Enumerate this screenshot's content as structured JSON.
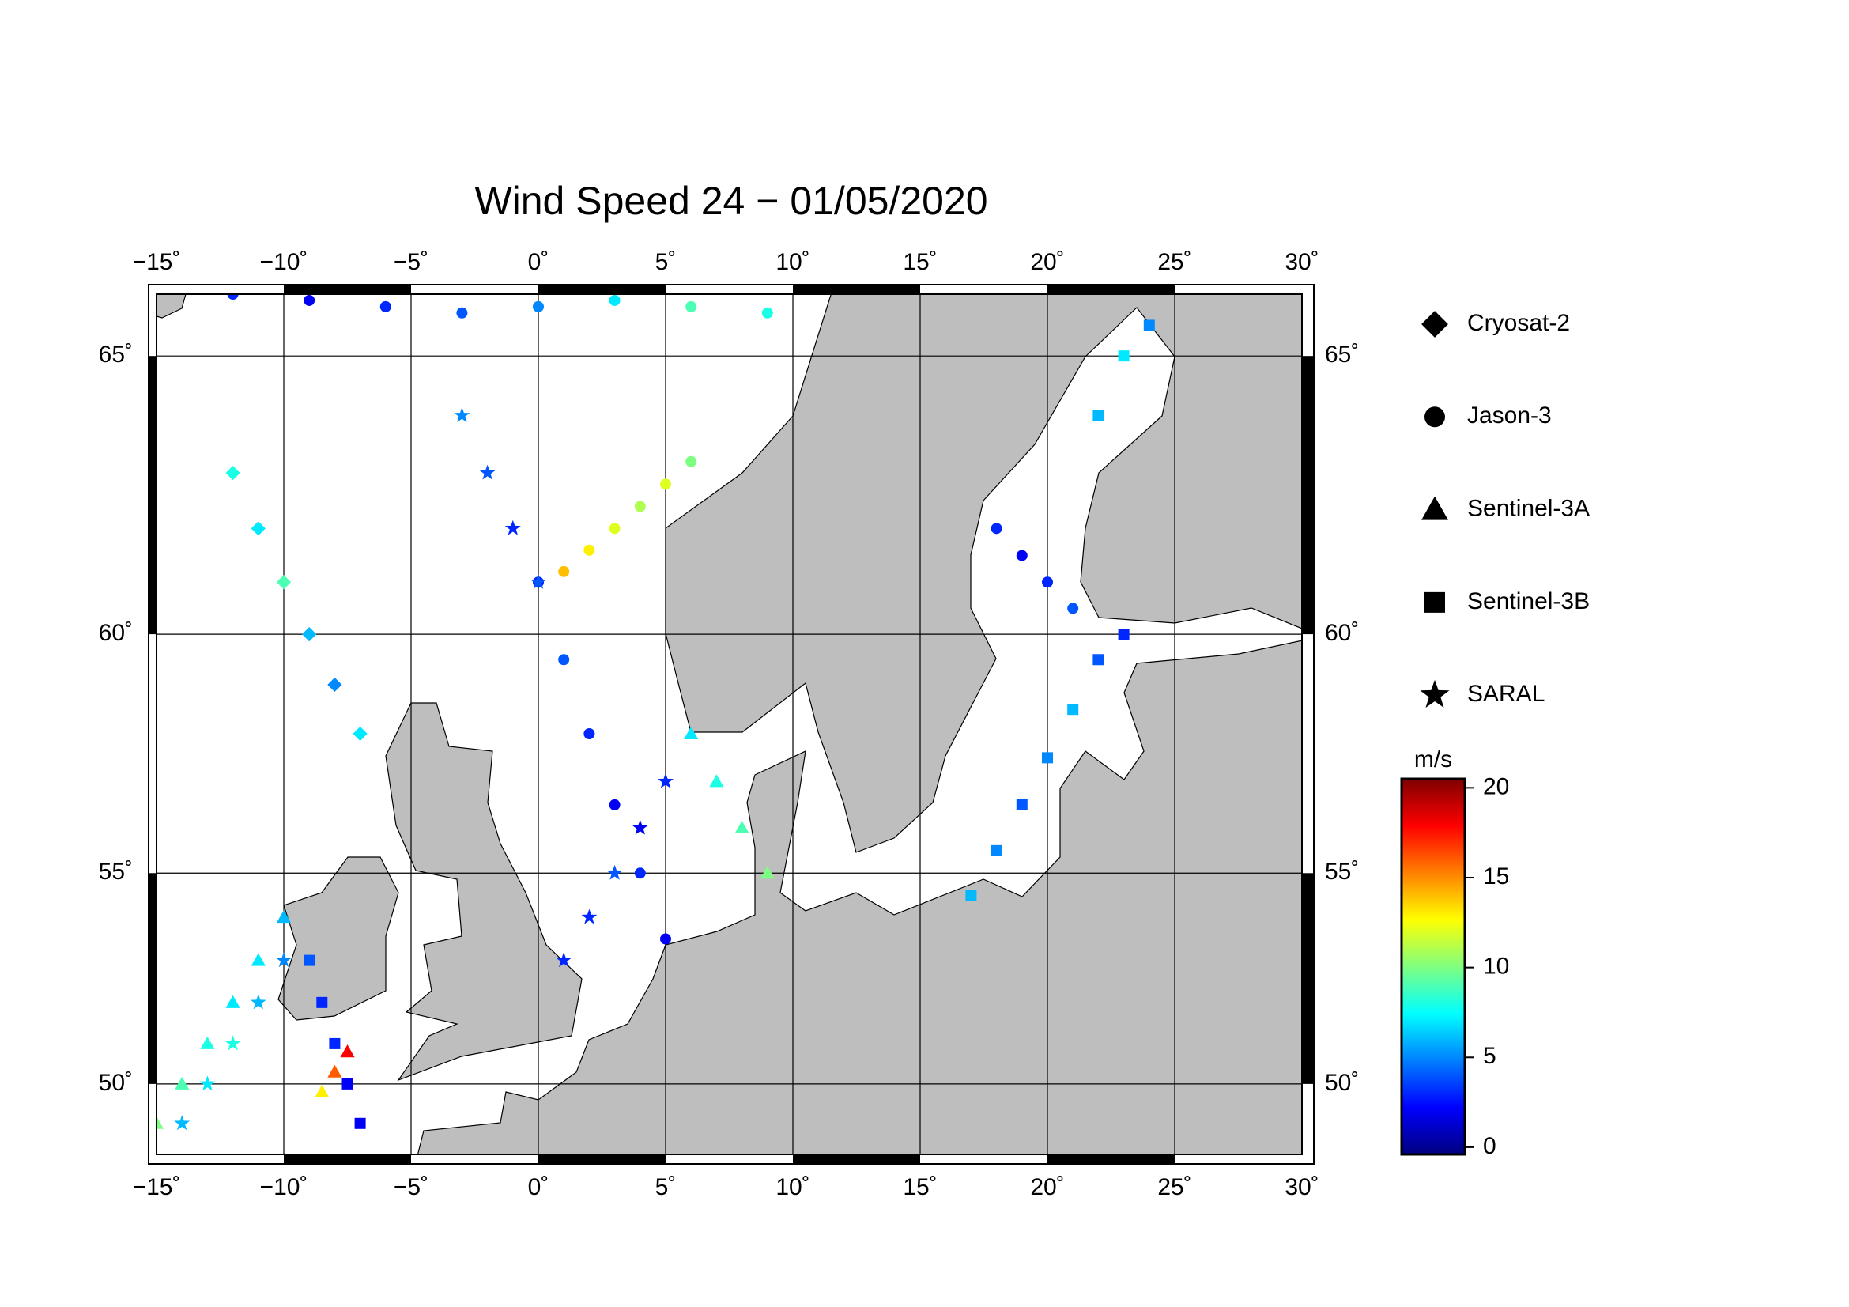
{
  "title": "Wind Speed 24 − 01/05/2020",
  "map": {
    "projection": "mercator",
    "xlim": [
      -15,
      30
    ],
    "ylim": [
      48.2,
      66
    ],
    "xticks": [
      {
        "value": -15,
        "label": "−15˚"
      },
      {
        "value": -10,
        "label": "−10˚"
      },
      {
        "value": -5,
        "label": "−5˚"
      },
      {
        "value": 0,
        "label": "0˚"
      },
      {
        "value": 5,
        "label": "5˚"
      },
      {
        "value": 10,
        "label": "10˚"
      },
      {
        "value": 15,
        "label": "15˚"
      },
      {
        "value": 20,
        "label": "20˚"
      },
      {
        "value": 25,
        "label": "25˚"
      },
      {
        "value": 30,
        "label": "30˚"
      }
    ],
    "yticks": [
      {
        "value": 50,
        "label": "50˚"
      },
      {
        "value": 55,
        "label": "55˚"
      },
      {
        "value": 60,
        "label": "60˚"
      },
      {
        "value": 65,
        "label": "65˚"
      }
    ],
    "grid": true
  },
  "series": [
    {
      "name": "Cryosat-2",
      "marker": "diamond",
      "lon": [
        -12,
        -11,
        -10,
        -9,
        -8,
        -7
      ],
      "lat": [
        63,
        62,
        61,
        60,
        59,
        58
      ],
      "speed": [
        8,
        7,
        9,
        6,
        5,
        7
      ]
    },
    {
      "name": "Jason-3",
      "marker": "circle",
      "lon": [
        0,
        1,
        2,
        3,
        4,
        5,
        -12,
        -9,
        -6,
        -3,
        0,
        3,
        6,
        9,
        1,
        2,
        3,
        4,
        5,
        6,
        18,
        19,
        20,
        21
      ],
      "lat": [
        61,
        59.5,
        58,
        56.5,
        55,
        53.5,
        66,
        65.9,
        65.8,
        65.7,
        65.8,
        65.9,
        65.8,
        65.7,
        61.2,
        61.6,
        62,
        62.4,
        62.8,
        63.2,
        62,
        61.5,
        61,
        60.5
      ],
      "speed": [
        3,
        4,
        3,
        2,
        3,
        2,
        3,
        2,
        3,
        4,
        5,
        7,
        9,
        8,
        14,
        13,
        12,
        11,
        12,
        10,
        3,
        2,
        3,
        4
      ]
    },
    {
      "name": "Sentinel-3A",
      "marker": "triangle",
      "lon": [
        -15,
        -14,
        -13,
        -12,
        -11,
        -10,
        -7.5,
        -8,
        -8.5,
        6,
        7,
        8,
        9
      ],
      "lat": [
        49,
        50,
        51,
        52,
        53,
        54,
        50.8,
        50.3,
        49.8,
        58,
        57,
        56,
        55
      ],
      "speed": [
        10,
        9,
        8,
        7,
        7,
        6,
        18,
        16,
        13,
        7,
        8,
        9,
        10
      ]
    },
    {
      "name": "Sentinel-3B",
      "marker": "square",
      "lon": [
        -9,
        -8.5,
        -8,
        -7.5,
        -7,
        17,
        18,
        19,
        20,
        21,
        22,
        23,
        22,
        23,
        24
      ],
      "lat": [
        53,
        52,
        51,
        50,
        49,
        54.5,
        55.5,
        56.5,
        57.5,
        58.5,
        59.5,
        60,
        64,
        65,
        65.5
      ],
      "speed": [
        4,
        3,
        3,
        2,
        2,
        6,
        5,
        4,
        5,
        6,
        4,
        3,
        6,
        7,
        5
      ]
    },
    {
      "name": "SARAL",
      "marker": "star",
      "lon": [
        -14,
        -13,
        -12,
        -11,
        -10,
        1,
        2,
        3,
        4,
        5,
        -3,
        -2,
        -1,
        0
      ],
      "lat": [
        49,
        50,
        51,
        52,
        53,
        53,
        54,
        55,
        56,
        57,
        64,
        63,
        62,
        61
      ],
      "speed": [
        6,
        7,
        8,
        6,
        5,
        3,
        3,
        4,
        2,
        3,
        5,
        4,
        3,
        4
      ]
    }
  ],
  "colorbar": {
    "label": "m/s",
    "lim": [
      -0.4,
      20.5
    ],
    "ticks": [
      0,
      5,
      10,
      15,
      20
    ]
  }
}
